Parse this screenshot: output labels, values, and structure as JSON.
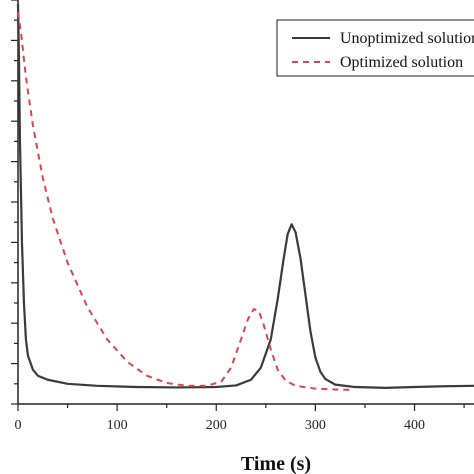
{
  "chart_data": {
    "type": "line",
    "xlabel": "Time (s)",
    "xlim": [
      0,
      460
    ],
    "ylim": [
      0,
      10
    ],
    "x_ticks": [
      0,
      100,
      200,
      300,
      400
    ],
    "grid": false,
    "legend_position": "top-right",
    "series": [
      {
        "name": "Unoptimized solution",
        "color": "#3a3a3a",
        "style": "solid",
        "points": [
          [
            0,
            9.9
          ],
          [
            1,
            8.5
          ],
          [
            2,
            6.5
          ],
          [
            4,
            4.0
          ],
          [
            6,
            2.5
          ],
          [
            8,
            1.6
          ],
          [
            10,
            1.2
          ],
          [
            15,
            0.85
          ],
          [
            20,
            0.7
          ],
          [
            30,
            0.6
          ],
          [
            50,
            0.5
          ],
          [
            80,
            0.45
          ],
          [
            120,
            0.42
          ],
          [
            160,
            0.41
          ],
          [
            200,
            0.42
          ],
          [
            220,
            0.46
          ],
          [
            235,
            0.6
          ],
          [
            245,
            0.9
          ],
          [
            255,
            1.6
          ],
          [
            262,
            2.6
          ],
          [
            268,
            3.6
          ],
          [
            272,
            4.2
          ],
          [
            276,
            4.45
          ],
          [
            280,
            4.25
          ],
          [
            285,
            3.6
          ],
          [
            290,
            2.7
          ],
          [
            295,
            1.8
          ],
          [
            300,
            1.15
          ],
          [
            305,
            0.8
          ],
          [
            310,
            0.62
          ],
          [
            320,
            0.48
          ],
          [
            340,
            0.42
          ],
          [
            370,
            0.4
          ],
          [
            400,
            0.42
          ],
          [
            430,
            0.44
          ],
          [
            460,
            0.45
          ]
        ]
      },
      {
        "name": "Optimized solution",
        "color": "#d9464a",
        "style": "dashed",
        "points": [
          [
            0,
            9.7
          ],
          [
            3,
            9.2
          ],
          [
            8,
            8.1
          ],
          [
            15,
            6.9
          ],
          [
            25,
            5.6
          ],
          [
            35,
            4.6
          ],
          [
            50,
            3.5
          ],
          [
            70,
            2.4
          ],
          [
            90,
            1.6
          ],
          [
            110,
            1.05
          ],
          [
            130,
            0.7
          ],
          [
            150,
            0.52
          ],
          [
            170,
            0.45
          ],
          [
            190,
            0.45
          ],
          [
            205,
            0.55
          ],
          [
            215,
            0.9
          ],
          [
            225,
            1.6
          ],
          [
            232,
            2.1
          ],
          [
            238,
            2.35
          ],
          [
            243,
            2.3
          ],
          [
            248,
            1.95
          ],
          [
            255,
            1.35
          ],
          [
            262,
            0.85
          ],
          [
            270,
            0.58
          ],
          [
            280,
            0.45
          ],
          [
            300,
            0.38
          ],
          [
            320,
            0.36
          ],
          [
            335,
            0.35
          ]
        ]
      }
    ]
  }
}
